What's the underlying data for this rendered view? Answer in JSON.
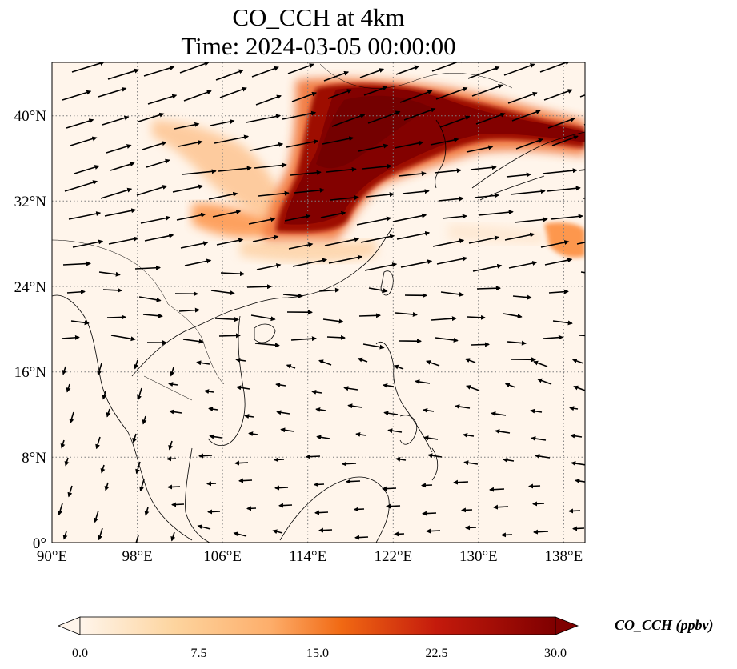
{
  "title": {
    "line1": "CO_CCH at 4km",
    "line2": "Time: 2024-03-05 00:00:00"
  },
  "axes": {
    "x_ticks": [
      "90°E",
      "98°E",
      "106°E",
      "114°E",
      "122°E",
      "130°E",
      "138°E"
    ],
    "y_ticks": [
      "0°",
      "8°N",
      "16°N",
      "24°N",
      "32°N",
      "40°N"
    ],
    "lon_range": [
      90,
      140
    ],
    "lat_range": [
      0,
      45
    ],
    "gridlines": "dotted"
  },
  "colorbar": {
    "label": "CO_CCH (ppbv)",
    "ticks": [
      "0.0",
      "7.5",
      "15.0",
      "22.5",
      "30.0"
    ],
    "range": [
      0,
      30
    ],
    "extend": "both",
    "colors": [
      "#fff5eb",
      "#fdd49e",
      "#fdae6b",
      "#fc8d3c",
      "#e6550d",
      "#b30000",
      "#7f0000"
    ]
  }
}
